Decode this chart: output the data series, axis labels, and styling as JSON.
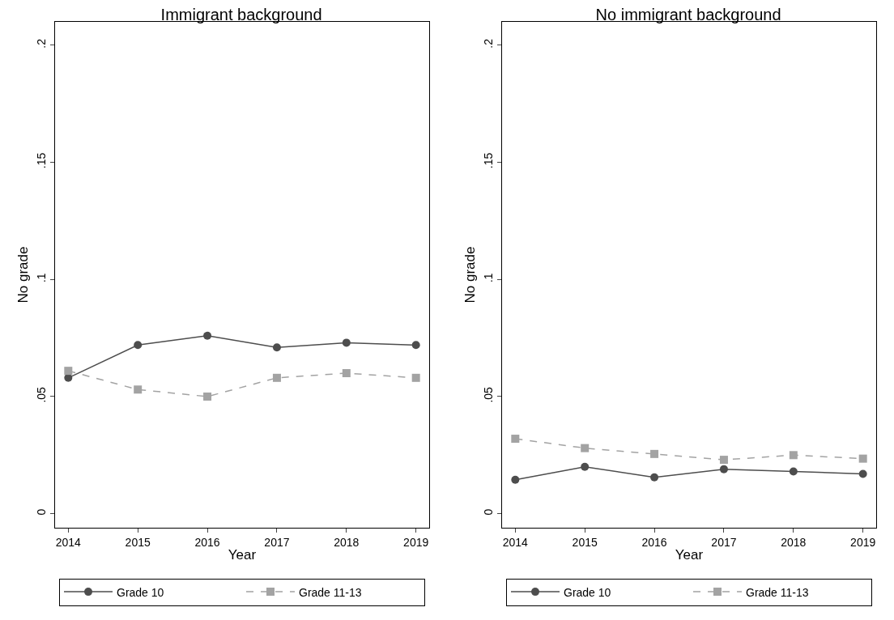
{
  "chart_data": [
    {
      "type": "line",
      "title": "Immigrant background",
      "xlabel": "Year",
      "ylabel": "No grade",
      "x": [
        2014,
        2015,
        2016,
        2017,
        2018,
        2019
      ],
      "xlim": [
        2013.81,
        2019.19
      ],
      "xticks": [
        2014,
        2015,
        2016,
        2017,
        2018,
        2019
      ],
      "ylim": [
        -0.006,
        0.21
      ],
      "yticks": [
        0,
        {
          "value": 0.05,
          "label": ".05"
        },
        {
          "value": 0.1,
          "label": ".1"
        },
        {
          "value": 0.15,
          "label": ".15"
        },
        {
          "value": 0.2,
          "label": ".2"
        }
      ],
      "legend": "bottom",
      "series": [
        {
          "name": "Grade 10",
          "color": "#4d4d4d",
          "marker": "circle",
          "line_style": "solid",
          "values": [
            0.058,
            0.072,
            0.076,
            0.071,
            0.073,
            0.072
          ]
        },
        {
          "name": "Grade 11-13",
          "color": "#a3a3a3",
          "marker": "square",
          "line_style": "dashed",
          "values": [
            0.061,
            0.053,
            0.05,
            0.058,
            0.06,
            0.058
          ]
        }
      ]
    },
    {
      "type": "line",
      "title": "No immigrant background",
      "xlabel": "Year",
      "ylabel": "No grade",
      "x": [
        2014,
        2015,
        2016,
        2017,
        2018,
        2019
      ],
      "xlim": [
        2013.81,
        2019.19
      ],
      "xticks": [
        2014,
        2015,
        2016,
        2017,
        2018,
        2019
      ],
      "ylim": [
        -0.006,
        0.21
      ],
      "yticks": [
        0,
        {
          "value": 0.05,
          "label": ".05"
        },
        {
          "value": 0.1,
          "label": ".1"
        },
        {
          "value": 0.15,
          "label": ".15"
        },
        {
          "value": 0.2,
          "label": ".2"
        }
      ],
      "legend": "bottom",
      "series": [
        {
          "name": "Grade 10",
          "color": "#4d4d4d",
          "marker": "circle",
          "line_style": "solid",
          "values": [
            0.0145,
            0.02,
            0.0155,
            0.019,
            0.018,
            0.017
          ]
        },
        {
          "name": "Grade 11-13",
          "color": "#a3a3a3",
          "marker": "square",
          "line_style": "dashed",
          "values": [
            0.032,
            0.028,
            0.0255,
            0.023,
            0.025,
            0.0235
          ]
        }
      ]
    }
  ]
}
